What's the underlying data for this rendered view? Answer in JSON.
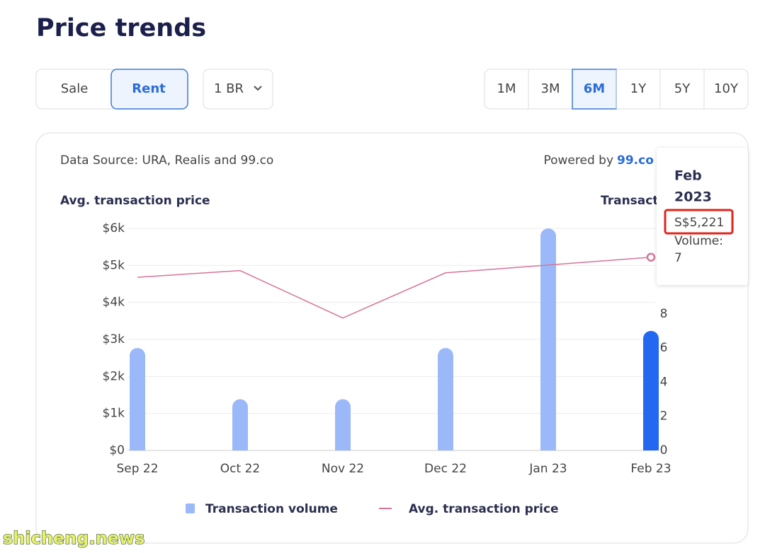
{
  "header": {
    "title": "Price trends"
  },
  "tabs": [
    {
      "label": "Sale",
      "selected": false
    },
    {
      "label": "Rent",
      "selected": true
    }
  ],
  "dropdown": {
    "label": "1 BR"
  },
  "ranges": [
    {
      "label": "1M",
      "selected": false
    },
    {
      "label": "3M",
      "selected": false
    },
    {
      "label": "6M",
      "selected": true
    },
    {
      "label": "1Y",
      "selected": false
    },
    {
      "label": "5Y",
      "selected": false
    },
    {
      "label": "10Y",
      "selected": false
    }
  ],
  "source": {
    "text": "Data Source: URA, Realis and 99.co",
    "powered": "Powered by",
    "brand": "99.co"
  },
  "chart_data": {
    "type": "bar",
    "y_label": "Avg. transaction price",
    "y2_label": "Transaction volume",
    "categories": [
      "Sep 22",
      "Oct 22",
      "Nov 22",
      "Dec 22",
      "Jan 23",
      "Feb 23"
    ],
    "series": [
      {
        "name": "Transaction volume",
        "type": "bar",
        "axis": "y2",
        "color": "#9bb9f9",
        "highlight_color": "#2468f2",
        "values": [
          6,
          3,
          3,
          6,
          13,
          7
        ]
      },
      {
        "name": "Avg. transaction price",
        "type": "line",
        "axis": "y",
        "color": "#d5739a",
        "values": [
          4680,
          4860,
          3580,
          4800,
          5010,
          5221
        ]
      }
    ],
    "active_index": 5,
    "ylim": [
      0,
      6000
    ],
    "yticks": [
      {
        "value": 0,
        "label": "$0"
      },
      {
        "value": 1000,
        "label": "$1k"
      },
      {
        "value": 2000,
        "label": "$2k"
      },
      {
        "value": 3000,
        "label": "$3k"
      },
      {
        "value": 4000,
        "label": "$4k"
      },
      {
        "value": 5000,
        "label": "$5k"
      },
      {
        "value": 6000,
        "label": "$6k"
      }
    ],
    "y2lim": [
      0,
      13
    ],
    "y2ticks": [
      0,
      2,
      4,
      6,
      8
    ],
    "grid": true
  },
  "tooltip": {
    "title_line1": "Feb",
    "title_line2": "2023",
    "price": "S$5,221",
    "volume_label": "Volume:"
  },
  "watermark": "shicheng.news"
}
